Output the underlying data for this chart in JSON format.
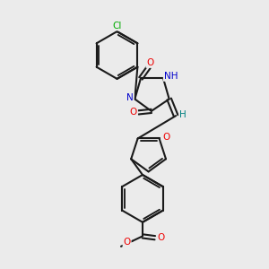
{
  "background_color": "#ebebeb",
  "bond_color": "#1a1a1a",
  "bond_width": 1.5,
  "atom_colors": {
    "N": "#0000cc",
    "O": "#ee0000",
    "Cl": "#00aa00",
    "H": "#008080"
  },
  "figsize": [
    3.0,
    3.0
  ],
  "dpi": 100
}
